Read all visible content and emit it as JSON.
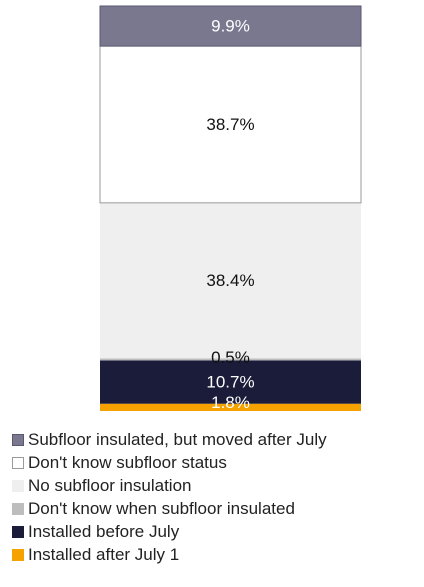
{
  "chart_data": {
    "type": "bar",
    "stacked": true,
    "orientation": "vertical",
    "title": "",
    "xlabel": "",
    "ylabel": "",
    "ylim": [
      0,
      100
    ],
    "legend_position": "bottom-left",
    "series": [
      {
        "name": "Installed after July 1",
        "value": 1.8,
        "label": "1.8%",
        "color": "#f5a100",
        "label_color": "#ffffff",
        "border": ""
      },
      {
        "name": "Installed before July",
        "value": 10.7,
        "label": "10.7%",
        "color": "#1b1b3a",
        "label_color": "#ffffff",
        "border": ""
      },
      {
        "name": "Don't know when subfloor insulated",
        "value": 0.5,
        "label": "0.5%",
        "color": "#bdbdbd",
        "label_color": "#111111",
        "border": ""
      },
      {
        "name": "No subfloor insulation",
        "value": 38.4,
        "label": "38.4%",
        "color": "#efefef",
        "label_color": "#111111",
        "border": ""
      },
      {
        "name": "Don't know subfloor status",
        "value": 38.7,
        "label": "38.7%",
        "color": "#ffffff",
        "label_color": "#111111",
        "border": "#9a9a9a"
      },
      {
        "name": "Subfloor insulated, but moved after July",
        "value": 9.9,
        "label": "9.9%",
        "color": "#7a788f",
        "label_color": "#ffffff",
        "border": "#5a5870"
      }
    ]
  },
  "legend": {
    "items": [
      {
        "label": "Subfloor insulated, but moved after July",
        "color": "#7a788f",
        "border": "#5a5870"
      },
      {
        "label": "Don't know subfloor status",
        "color": "#ffffff",
        "border": "#9a9a9a"
      },
      {
        "label": "No subfloor insulation",
        "color": "#efefef",
        "border": ""
      },
      {
        "label": "Don't know when subfloor insulated",
        "color": "#bdbdbd",
        "border": ""
      },
      {
        "label": "Installed before July",
        "color": "#1b1b3a",
        "border": ""
      },
      {
        "label": "Installed after July 1",
        "color": "#f5a100",
        "border": ""
      }
    ]
  }
}
